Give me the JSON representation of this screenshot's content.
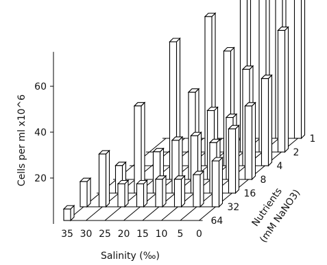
{
  "chart_data": {
    "type": "bar3d",
    "x_label": "Salinity (‰)",
    "x_categories": [
      "35",
      "30",
      "25",
      "20",
      "15",
      "10",
      "5",
      "0"
    ],
    "z_label_line1": "Nutrients",
    "z_label_line2": "(mM NaNO3)",
    "z_categories": [
      "64",
      "32",
      "16",
      "8",
      "4",
      "2",
      "1"
    ],
    "y_label": "Cells per ml x10^6",
    "y_ticks": [
      20,
      40,
      60
    ],
    "y_range": [
      0,
      75
    ],
    "values": [
      [
        5,
        0,
        0,
        0,
        0,
        0,
        0,
        0
      ],
      [
        11,
        23,
        10,
        10,
        12,
        12,
        14,
        20
      ],
      [
        0,
        12,
        38,
        18,
        23,
        25,
        22,
        28
      ],
      [
        0,
        0,
        0,
        60,
        38,
        30,
        27,
        32
      ],
      [
        0,
        0,
        0,
        0,
        65,
        50,
        42,
        38
      ],
      [
        0,
        0,
        0,
        0,
        0,
        80,
        68,
        53
      ],
      [
        0,
        0,
        0,
        0,
        0,
        0,
        82,
        75
      ]
    ]
  }
}
